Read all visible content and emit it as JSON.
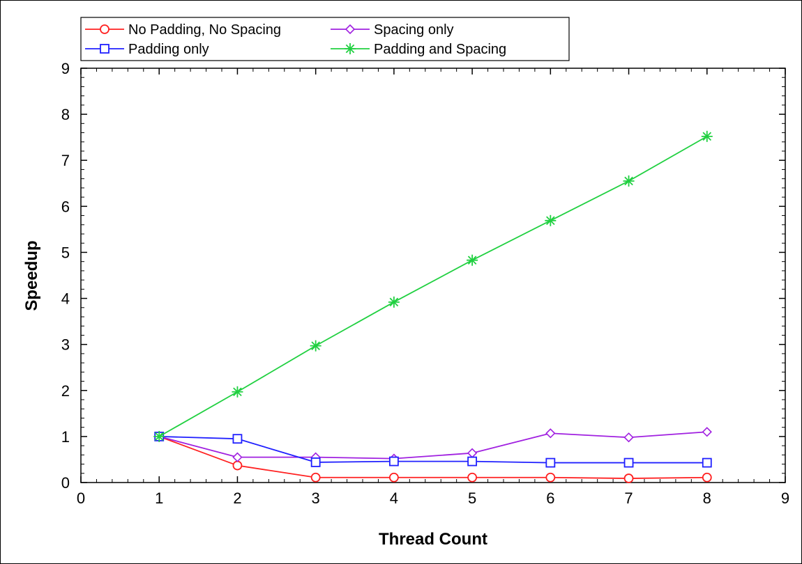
{
  "chart_data": {
    "type": "line",
    "xlabel": "Thread Count",
    "ylabel": "Speedup",
    "xlim": [
      0,
      9
    ],
    "ylim": [
      0,
      9
    ],
    "xticks": [
      "0",
      "1",
      "2",
      "3",
      "4",
      "5",
      "6",
      "7",
      "8",
      "9"
    ],
    "yticks": [
      "0",
      "1",
      "2",
      "3",
      "4",
      "5",
      "6",
      "7",
      "8",
      "9"
    ],
    "grid": false,
    "legend_position": "top-left",
    "series": [
      {
        "name": "No Padding, No Spacing",
        "color": "#ff2020",
        "marker": "circle",
        "x": [
          1,
          2,
          3,
          4,
          5,
          6,
          7,
          8
        ],
        "values": [
          1.0,
          0.37,
          0.11,
          0.11,
          0.11,
          0.11,
          0.09,
          0.11
        ]
      },
      {
        "name": "Spacing only",
        "color": "#a020e0",
        "marker": "diamond",
        "x": [
          1,
          2,
          3,
          4,
          5,
          6,
          7,
          8
        ],
        "values": [
          1.0,
          0.55,
          0.55,
          0.52,
          0.64,
          1.07,
          0.98,
          1.1
        ]
      },
      {
        "name": "Padding only",
        "color": "#2020ff",
        "marker": "square",
        "x": [
          1,
          2,
          3,
          4,
          5,
          6,
          7,
          8
        ],
        "values": [
          1.0,
          0.95,
          0.44,
          0.46,
          0.46,
          0.43,
          0.43,
          0.43
        ]
      },
      {
        "name": "Padding and Spacing",
        "color": "#20d040",
        "marker": "asterisk",
        "x": [
          1,
          2,
          3,
          4,
          5,
          6,
          7,
          8
        ],
        "values": [
          1.0,
          1.97,
          2.97,
          3.92,
          4.83,
          5.69,
          6.55,
          7.52
        ]
      }
    ]
  }
}
